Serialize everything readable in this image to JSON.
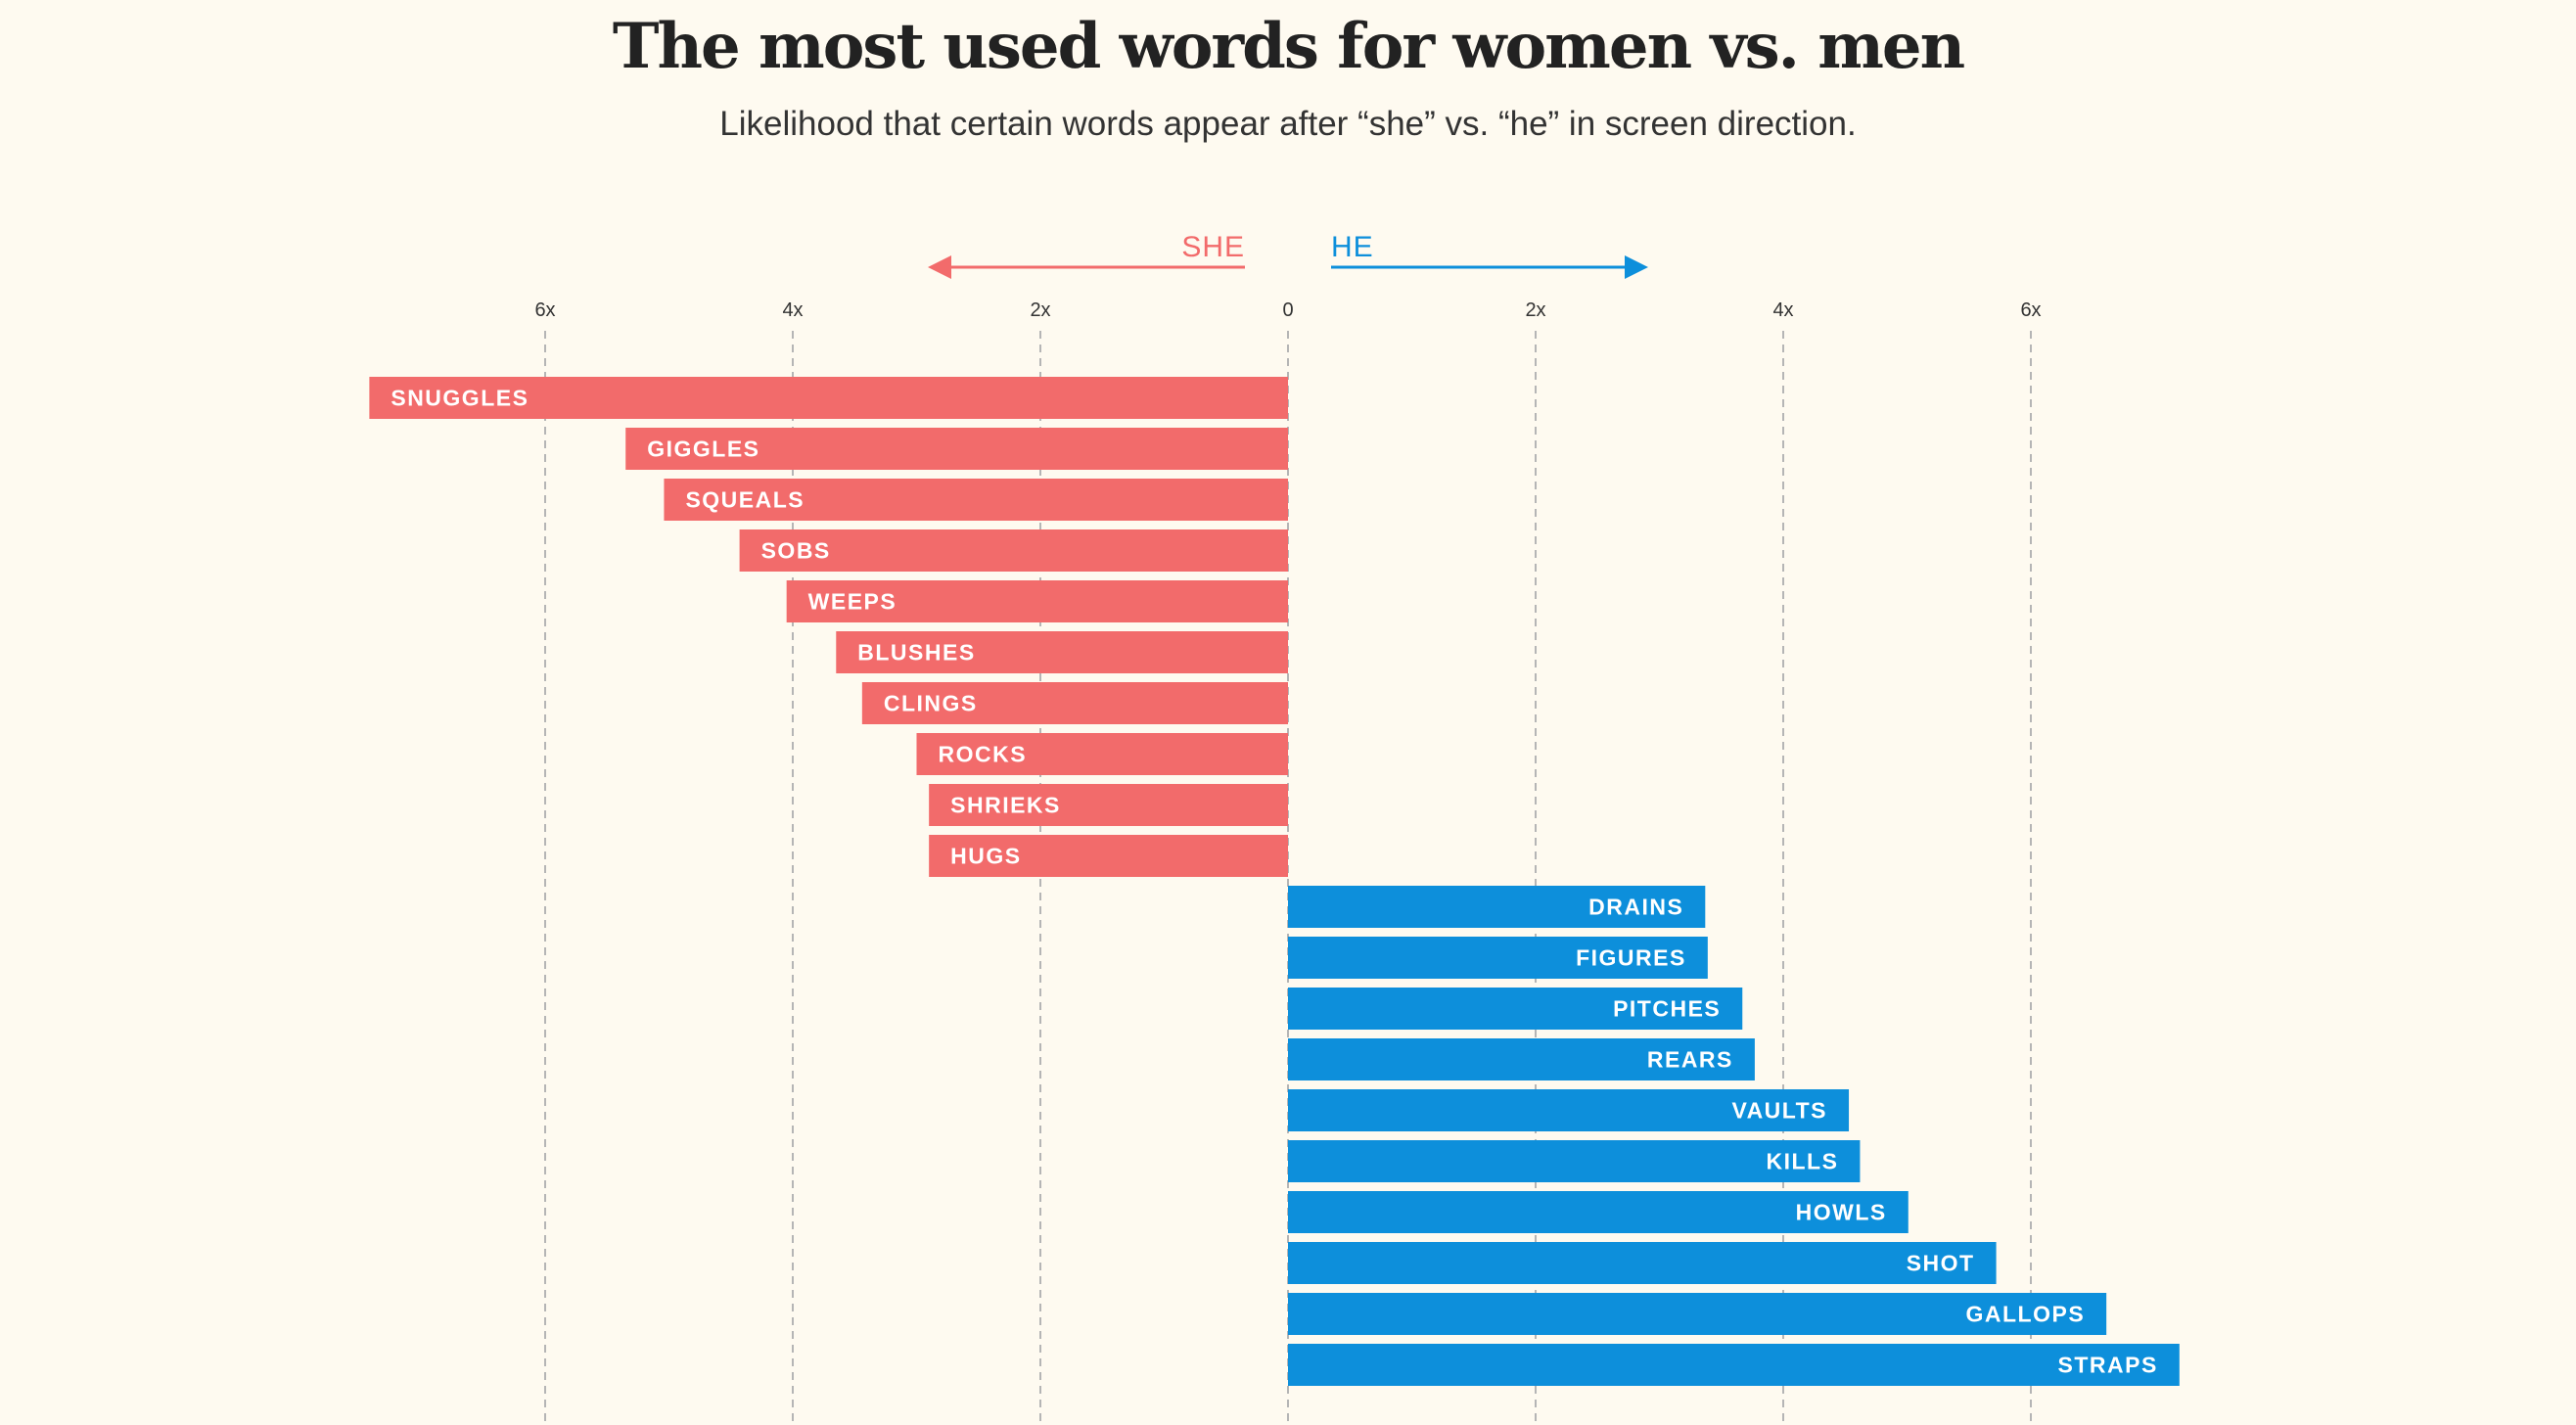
{
  "chart_data": {
    "type": "bar",
    "orientation": "horizontal-diverging",
    "title": "The most used words for women vs. men",
    "subtitle": "Likelihood that certain words appear after “she” vs. “he” in screen direction.",
    "directions": {
      "left": "SHE",
      "right": "HE"
    },
    "xlim": [
      -7.5,
      7.5
    ],
    "ticks": [
      {
        "value": -6,
        "label": "6x"
      },
      {
        "value": -4,
        "label": "4x"
      },
      {
        "value": -2,
        "label": "2x"
      },
      {
        "value": 0,
        "label": "0"
      },
      {
        "value": 2,
        "label": "2x"
      },
      {
        "value": 4,
        "label": "4x"
      },
      {
        "value": 6,
        "label": "6x"
      }
    ],
    "grid": true,
    "series": [
      {
        "name": "SHE",
        "color": "#f26b6b",
        "items": [
          {
            "word": "SNUGGLES",
            "value": 7.42
          },
          {
            "word": "GIGGLES",
            "value": 5.35
          },
          {
            "word": "SQUEALS",
            "value": 5.04
          },
          {
            "word": "SOBS",
            "value": 4.43
          },
          {
            "word": "WEEPS",
            "value": 4.05
          },
          {
            "word": "BLUSHES",
            "value": 3.65
          },
          {
            "word": "CLINGS",
            "value": 3.44
          },
          {
            "word": "ROCKS",
            "value": 3.0
          },
          {
            "word": "SHRIEKS",
            "value": 2.9
          },
          {
            "word": "HUGS",
            "value": 2.9
          }
        ]
      },
      {
        "name": "HE",
        "color": "#0d8fdb",
        "items": [
          {
            "word": "DRAINS",
            "value": 3.37
          },
          {
            "word": "FIGURES",
            "value": 3.39
          },
          {
            "word": "PITCHES",
            "value": 3.67
          },
          {
            "word": "REARS",
            "value": 3.77
          },
          {
            "word": "VAULTS",
            "value": 4.53
          },
          {
            "word": "KILLS",
            "value": 4.62
          },
          {
            "word": "HOWLS",
            "value": 5.01
          },
          {
            "word": "SHOT",
            "value": 5.72
          },
          {
            "word": "GALLOPS",
            "value": 6.61
          },
          {
            "word": "STRAPS",
            "value": 7.2
          }
        ]
      }
    ]
  }
}
